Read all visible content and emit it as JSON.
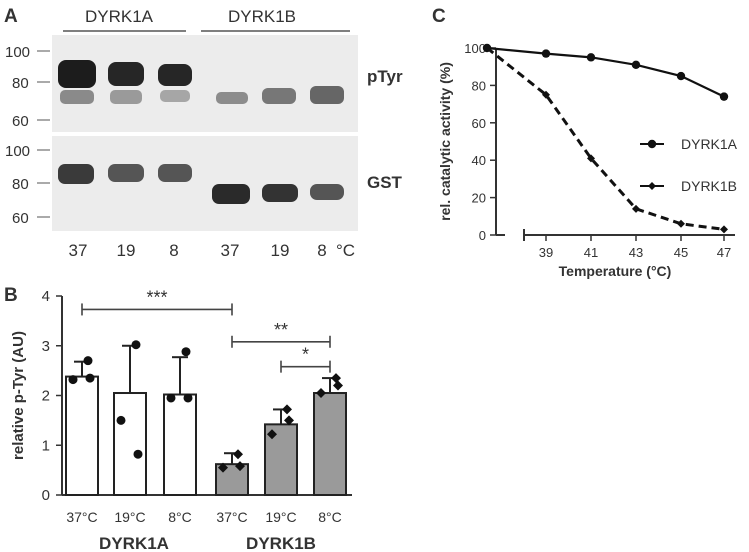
{
  "panels": {
    "A": {
      "letter": "A",
      "group_labels": [
        "DYRK1A",
        "DYRK1B"
      ],
      "row_labels": [
        "pTyr",
        "GST"
      ],
      "mw_markers": [
        "100",
        "80",
        "60"
      ],
      "lane_labels": [
        "37",
        "19",
        "8",
        "37",
        "19",
        "8"
      ],
      "unit": "°C"
    },
    "B": {
      "letter": "B"
    },
    "C": {
      "letter": "C"
    }
  },
  "chart_data": [
    {
      "type": "bar",
      "panel": "B",
      "categories": [
        "37°C",
        "19°C",
        "8°C",
        "37°C",
        "19°C",
        "8°C"
      ],
      "groups": [
        "DYRK1A",
        "DYRK1B"
      ],
      "group_of_category": [
        0,
        0,
        0,
        1,
        1,
        1
      ],
      "bar_colors": [
        "#ffffff",
        "#ffffff",
        "#ffffff",
        "#9a9a9a",
        "#9a9a9a",
        "#9a9a9a"
      ],
      "values": [
        2.38,
        2.05,
        2.02,
        0.62,
        1.42,
        2.05
      ],
      "error_up": [
        0.3,
        0.95,
        0.75,
        0.22,
        0.3,
        0.3
      ],
      "points": [
        [
          2.7,
          2.32,
          2.35
        ],
        [
          3.02,
          1.5,
          0.82
        ],
        [
          2.88,
          1.95,
          1.95
        ],
        [
          0.82,
          0.55,
          0.58
        ],
        [
          1.72,
          1.22,
          1.5
        ],
        [
          2.35,
          2.05,
          2.2
        ]
      ],
      "point_markers": [
        "circle",
        "circle",
        "circle",
        "diamond",
        "diamond",
        "diamond"
      ],
      "ylabel": "relative p-Tyr (AU)",
      "yticks": [
        "0",
        "1",
        "2",
        "3",
        "4"
      ],
      "ylim": [
        0,
        4
      ],
      "significance": [
        {
          "from": 0,
          "to": 3,
          "label": "***",
          "level": 3.73
        },
        {
          "from": 3,
          "to": 5,
          "label": "**",
          "level": 3.08
        },
        {
          "from": 4,
          "to": 5,
          "label": "*",
          "level": 2.58
        }
      ]
    },
    {
      "type": "line",
      "panel": "C",
      "x": [
        37,
        39,
        41,
        43,
        45,
        47
      ],
      "xticks": [
        "39",
        "41",
        "43",
        "45",
        "47"
      ],
      "xlabel": "Temperature (°C)",
      "ylabel": "rel. catalytic activity (%)",
      "yticks": [
        "0",
        "20",
        "40",
        "60",
        "80",
        "100"
      ],
      "ylim": [
        0,
        100
      ],
      "xlim": [
        37,
        47
      ],
      "series": [
        {
          "name": "DYRK1A",
          "values": [
            100,
            97,
            95,
            91,
            85,
            74
          ],
          "style": "solid",
          "marker": "circle"
        },
        {
          "name": "DYRK1B",
          "values": [
            100,
            75,
            41,
            14,
            6,
            3
          ],
          "style": "dashed",
          "marker": "diamond"
        }
      ]
    }
  ]
}
